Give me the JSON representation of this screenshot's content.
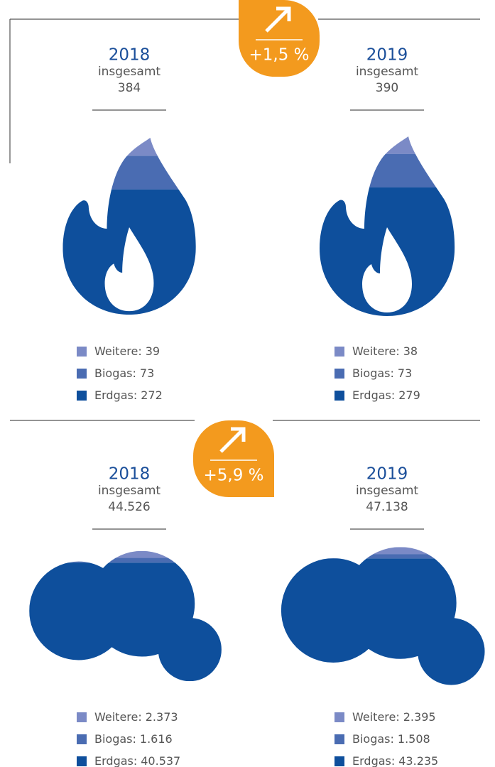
{
  "chart_data": [
    {
      "type": "flame",
      "change": 1.5,
      "change_label": "+1,5 %",
      "colors": [
        "#7b8ac6",
        "#4a6cb2",
        "#0e4f9c"
      ],
      "panels": [
        {
          "title": "2018",
          "subtitle": "insgesamt",
          "total": 384,
          "categories": [
            "Weitere:",
            "Biogas:",
            "Erdgas:"
          ],
          "values": [
            39,
            73,
            272
          ]
        },
        {
          "title": "2019",
          "subtitle": "insgesamt",
          "total": 390,
          "categories": [
            "Weitere:",
            "Biogas:",
            "Erdgas:"
          ],
          "values": [
            38,
            73,
            279
          ]
        }
      ]
    },
    {
      "type": "cloud",
      "change": 5.9,
      "change_label": "+5,9 %",
      "colors": [
        "#7b8ac6",
        "#4a6cb2",
        "#0e4f9c"
      ],
      "panels": [
        {
          "title": "2018",
          "subtitle": "insgesamt",
          "total": 44526,
          "total_label": "44.526",
          "categories": [
            "Weitere:",
            "Biogas:",
            "Erdgas:"
          ],
          "values": [
            2373,
            1616,
            40537
          ],
          "value_labels": [
            "2.373",
            "1.616",
            "40.537"
          ]
        },
        {
          "title": "2019",
          "subtitle": "insgesamt",
          "total": 47138,
          "total_label": "47.138",
          "categories": [
            "Weitere:",
            "Biogas:",
            "Erdgas:"
          ],
          "values": [
            2395,
            1508,
            43235
          ],
          "value_labels": [
            "2.395",
            "1.508",
            "43.235"
          ]
        }
      ]
    }
  ]
}
